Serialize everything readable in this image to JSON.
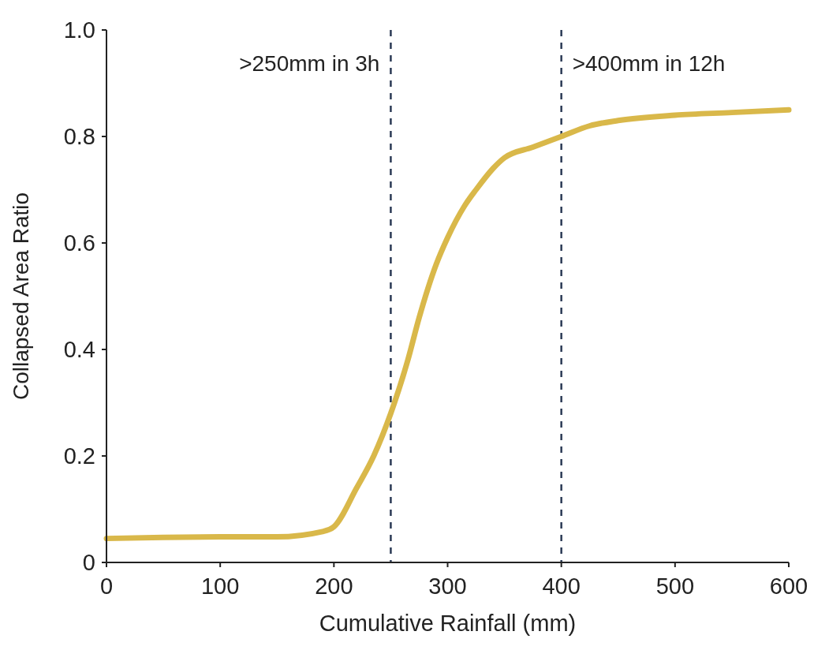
{
  "chart_data": {
    "type": "line",
    "xlabel": "Cumulative Rainfall (mm)",
    "ylabel": "Collapsed Area Ratio",
    "x": [
      0,
      50,
      100,
      150,
      190,
      200,
      220,
      235,
      250,
      265,
      275,
      290,
      300,
      315,
      325,
      340,
      350,
      375,
      400,
      425,
      450,
      500,
      550,
      600
    ],
    "series": [
      {
        "color": "#d9b84a",
        "values": [
          0.045,
          0.047,
          0.048,
          0.048,
          0.058,
          0.067,
          0.14,
          0.2,
          0.28,
          0.38,
          0.46,
          0.56,
          0.61,
          0.67,
          0.7,
          0.74,
          0.76,
          0.78,
          0.8,
          0.82,
          0.83,
          0.84,
          0.845,
          0.85
        ]
      }
    ],
    "xlim": [
      0,
      600
    ],
    "xticks": [
      0,
      100,
      200,
      300,
      400,
      500,
      600
    ],
    "ylim": [
      0,
      1
    ],
    "yticks": [
      0,
      {
        "value": 0.2,
        "label": "0.2"
      },
      {
        "value": 0.4,
        "label": "0.4"
      },
      {
        "value": 0.6,
        "label": "0.6"
      },
      {
        "value": 0.8,
        "label": "0.8"
      },
      {
        "value": 1,
        "label": "1.0"
      }
    ],
    "ref_lines": [
      {
        "axis": "x",
        "value": 250,
        "label": ">250mm in 3h",
        "color": "#2b3a55",
        "line_style": "dashed"
      },
      {
        "axis": "x",
        "value": 400,
        "label": ">400mm in 12h",
        "color": "#2b3a55",
        "line_style": "dashed"
      }
    ],
    "marker": "none",
    "line_style": "solid"
  }
}
